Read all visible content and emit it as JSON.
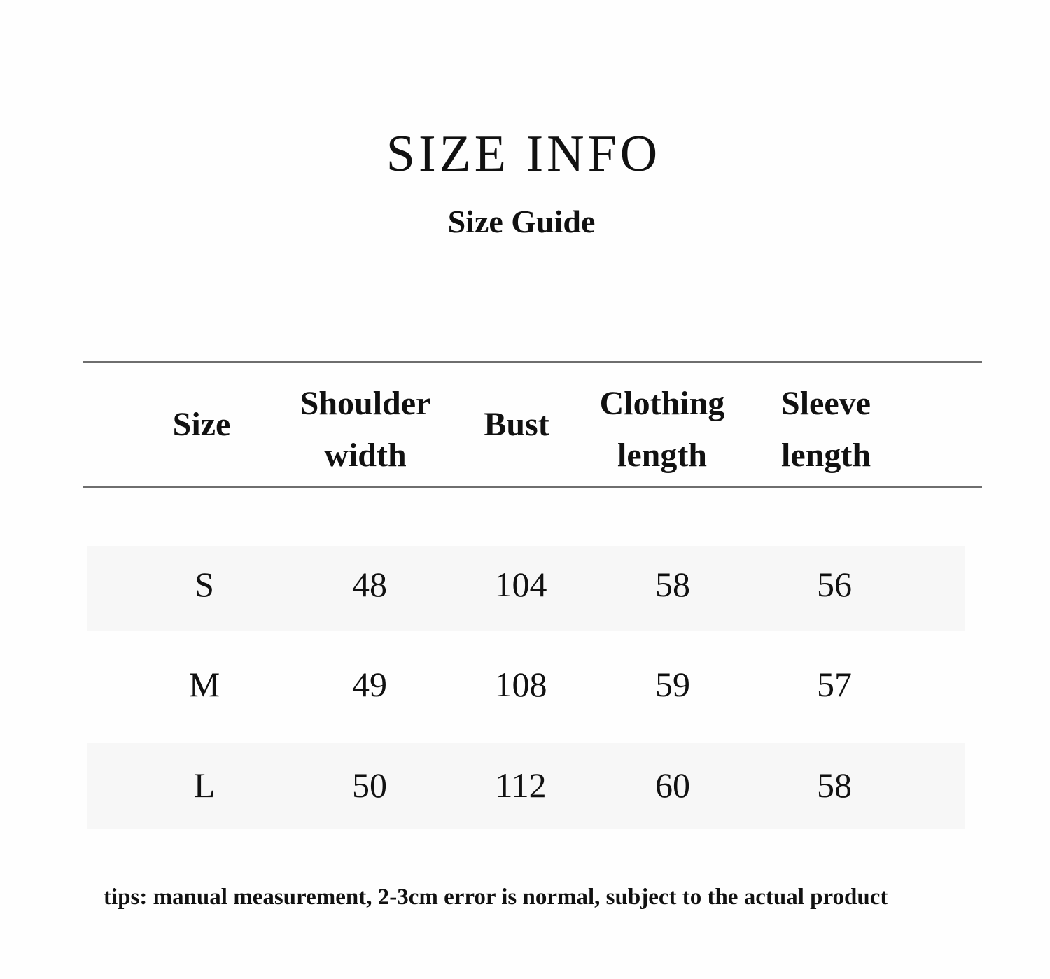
{
  "title": "SIZE INFO",
  "subtitle": "Size Guide",
  "table": {
    "headers": [
      [
        "Size"
      ],
      [
        "Shoulder",
        "width"
      ],
      [
        "Bust"
      ],
      [
        "Clothing",
        "length"
      ],
      [
        "Sleeve",
        "length"
      ]
    ],
    "rows": [
      [
        "S",
        "48",
        "104",
        "58",
        "56"
      ],
      [
        "M",
        "49",
        "108",
        "59",
        "57"
      ],
      [
        "L",
        "50",
        "112",
        "60",
        "58"
      ]
    ]
  },
  "tips": "tips: manual measurement, 2-3cm error is normal, subject to the actual product"
}
